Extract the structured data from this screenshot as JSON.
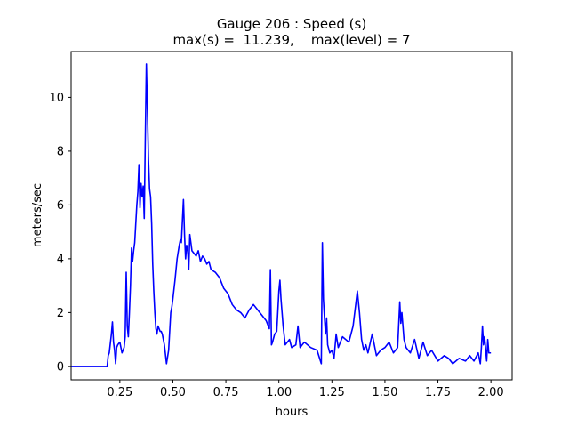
{
  "chart_data": {
    "type": "line",
    "title_line1": "Gauge 206 : Speed (s)",
    "title_line2": "max(s) =  11.239,    max(level) = 7",
    "xlabel": "hours",
    "ylabel": "meters/sec",
    "xlim": [
      0.02,
      2.1
    ],
    "ylim": [
      -0.5,
      11.7
    ],
    "xticks": [
      {
        "value": 0.25,
        "label": "0.25"
      },
      {
        "value": 0.5,
        "label": "0.50"
      },
      {
        "value": 0.75,
        "label": "0.75"
      },
      {
        "value": 1.0,
        "label": "1.00"
      },
      {
        "value": 1.25,
        "label": "1.25"
      },
      {
        "value": 1.5,
        "label": "1.50"
      },
      {
        "value": 1.75,
        "label": "1.75"
      },
      {
        "value": 2.0,
        "label": "2.00"
      }
    ],
    "yticks": [
      {
        "value": 0,
        "label": "0"
      },
      {
        "value": 2,
        "label": "2"
      },
      {
        "value": 4,
        "label": "4"
      },
      {
        "value": 6,
        "label": "6"
      },
      {
        "value": 8,
        "label": "8"
      },
      {
        "value": 10,
        "label": "10"
      }
    ],
    "grid": false,
    "series": [
      {
        "color": "#0000ff",
        "x": [
          0.02,
          0.19,
          0.195,
          0.2,
          0.21,
          0.215,
          0.22,
          0.225,
          0.23,
          0.235,
          0.24,
          0.245,
          0.25,
          0.26,
          0.265,
          0.27,
          0.275,
          0.28,
          0.285,
          0.29,
          0.295,
          0.3,
          0.305,
          0.31,
          0.315,
          0.32,
          0.33,
          0.335,
          0.34,
          0.345,
          0.35,
          0.355,
          0.36,
          0.365,
          0.37,
          0.375,
          0.38,
          0.385,
          0.39,
          0.395,
          0.4,
          0.405,
          0.41,
          0.415,
          0.42,
          0.425,
          0.43,
          0.44,
          0.445,
          0.45,
          0.46,
          0.47,
          0.48,
          0.49,
          0.495,
          0.5,
          0.51,
          0.52,
          0.53,
          0.535,
          0.54,
          0.55,
          0.555,
          0.56,
          0.565,
          0.57,
          0.575,
          0.58,
          0.585,
          0.59,
          0.6,
          0.61,
          0.62,
          0.63,
          0.64,
          0.65,
          0.66,
          0.67,
          0.68,
          0.7,
          0.72,
          0.74,
          0.76,
          0.78,
          0.8,
          0.82,
          0.84,
          0.86,
          0.88,
          0.9,
          0.92,
          0.94,
          0.955,
          0.96,
          0.965,
          0.97,
          0.98,
          0.99,
          1.0,
          1.005,
          1.01,
          1.02,
          1.03,
          1.04,
          1.05,
          1.06,
          1.08,
          1.09,
          1.1,
          1.12,
          1.15,
          1.18,
          1.2,
          1.205,
          1.21,
          1.215,
          1.22,
          1.225,
          1.23,
          1.24,
          1.25,
          1.26,
          1.27,
          1.28,
          1.3,
          1.33,
          1.35,
          1.37,
          1.38,
          1.39,
          1.4,
          1.41,
          1.42,
          1.44,
          1.46,
          1.48,
          1.5,
          1.52,
          1.54,
          1.56,
          1.57,
          1.575,
          1.58,
          1.59,
          1.6,
          1.62,
          1.64,
          1.66,
          1.68,
          1.7,
          1.72,
          1.75,
          1.78,
          1.8,
          1.82,
          1.85,
          1.88,
          1.9,
          1.92,
          1.94,
          1.95,
          1.955,
          1.96,
          1.965,
          1.97,
          1.98,
          1.985,
          1.99,
          2.0
        ],
        "y": [
          0,
          0,
          0.4,
          0.5,
          1.2,
          1.65,
          0.9,
          0.6,
          0.1,
          0.7,
          0.8,
          0.85,
          0.9,
          0.5,
          0.6,
          0.7,
          1.1,
          3.5,
          1.5,
          1.1,
          2.0,
          3.0,
          4.4,
          3.9,
          4.3,
          4.6,
          6.0,
          6.5,
          7.5,
          5.9,
          6.8,
          6.3,
          6.7,
          5.5,
          8.5,
          11.24,
          9.5,
          7.7,
          6.6,
          6.3,
          5.3,
          3.8,
          2.8,
          2.0,
          1.4,
          1.2,
          1.5,
          1.3,
          1.3,
          1.2,
          0.8,
          0.1,
          0.6,
          2.0,
          2.2,
          2.5,
          3.2,
          4.0,
          4.5,
          4.7,
          4.6,
          6.2,
          4.9,
          4.0,
          4.5,
          4.3,
          3.6,
          4.9,
          4.6,
          4.3,
          4.2,
          4.1,
          4.3,
          3.9,
          4.1,
          4.0,
          3.8,
          3.9,
          3.6,
          3.5,
          3.3,
          2.9,
          2.7,
          2.3,
          2.1,
          2.0,
          1.8,
          2.1,
          2.3,
          2.1,
          1.9,
          1.7,
          1.4,
          3.6,
          0.8,
          0.9,
          1.2,
          1.3,
          2.8,
          3.2,
          2.5,
          1.5,
          0.8,
          0.9,
          1.0,
          0.7,
          0.8,
          1.5,
          0.7,
          0.9,
          0.7,
          0.6,
          0.1,
          4.6,
          2.5,
          1.8,
          1.2,
          1.8,
          0.8,
          0.5,
          0.6,
          0.3,
          1.2,
          0.7,
          1.1,
          0.9,
          1.5,
          2.8,
          2.0,
          1.0,
          0.6,
          0.8,
          0.5,
          1.2,
          0.4,
          0.6,
          0.7,
          0.9,
          0.5,
          0.7,
          2.4,
          1.6,
          2.0,
          1.0,
          0.7,
          0.5,
          1.0,
          0.3,
          0.9,
          0.4,
          0.6,
          0.2,
          0.4,
          0.3,
          0.1,
          0.3,
          0.2,
          0.4,
          0.2,
          0.5,
          0.1,
          0.7,
          1.5,
          0.8,
          1.1,
          0.2,
          1.0,
          0.5,
          0.5
        ]
      }
    ]
  }
}
